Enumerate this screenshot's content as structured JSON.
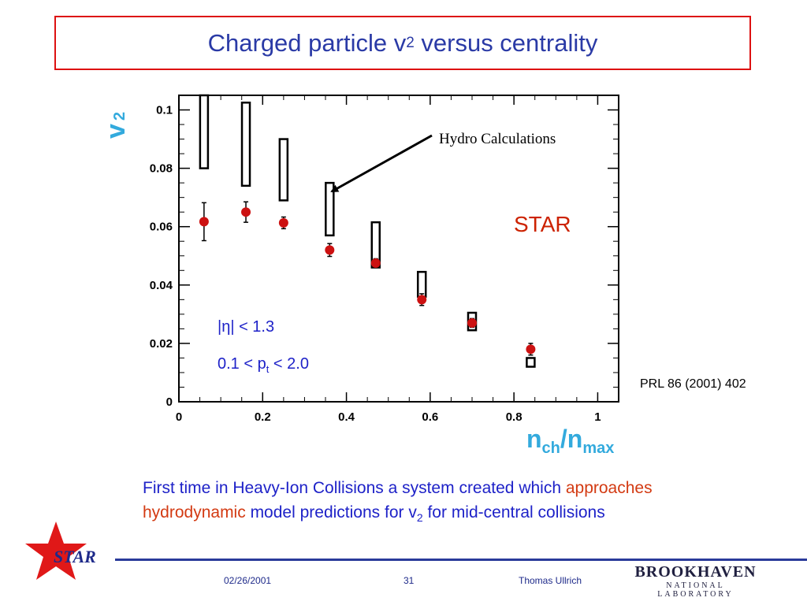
{
  "slide": {
    "title_main": "Charged particle v",
    "title_sub": "2",
    "title_rest": " versus centrality"
  },
  "chart_data": {
    "type": "scatter",
    "xlim": [
      0,
      1.05
    ],
    "ylim": [
      0,
      0.105
    ],
    "x_ticks": [
      "0",
      "0.2",
      "0.4",
      "0.6",
      "0.8",
      "1"
    ],
    "y_ticks": [
      "0",
      "0.02",
      "0.04",
      "0.06",
      "0.08",
      "0.1"
    ],
    "xlabel_main": "n",
    "xlabel_sub1": "ch",
    "xlabel_slash": "/n",
    "xlabel_sub2": "max",
    "ylabel_main": "v",
    "ylabel_sub": "2",
    "series": [
      {
        "kind": "data points",
        "color": "#cc1111",
        "points": [
          {
            "x": 0.06,
            "y": 0.0617,
            "err": 0.0065
          },
          {
            "x": 0.16,
            "y": 0.065,
            "err": 0.0035
          },
          {
            "x": 0.25,
            "y": 0.0613,
            "err": 0.002
          },
          {
            "x": 0.36,
            "y": 0.052,
            "err": 0.0022
          },
          {
            "x": 0.47,
            "y": 0.0475,
            "err": 0.0015
          },
          {
            "x": 0.58,
            "y": 0.035,
            "err": 0.002
          },
          {
            "x": 0.7,
            "y": 0.027,
            "err": 0.0015
          },
          {
            "x": 0.84,
            "y": 0.018,
            "err": 0.002
          }
        ]
      },
      {
        "kind": "hydro boxes",
        "color": "#000000",
        "boxes": [
          {
            "x": 0.06,
            "ylow": 0.08,
            "yhigh": 0.105
          },
          {
            "x": 0.16,
            "ylow": 0.074,
            "yhigh": 0.1025
          },
          {
            "x": 0.25,
            "ylow": 0.069,
            "yhigh": 0.09
          },
          {
            "x": 0.36,
            "ylow": 0.057,
            "yhigh": 0.075
          },
          {
            "x": 0.47,
            "ylow": 0.046,
            "yhigh": 0.0615
          },
          {
            "x": 0.58,
            "ylow": 0.036,
            "yhigh": 0.0445
          },
          {
            "x": 0.7,
            "ylow": 0.0245,
            "yhigh": 0.0305
          },
          {
            "x": 0.84,
            "ylow": 0.012,
            "yhigh": 0.015
          }
        ]
      }
    ],
    "annotations": {
      "hydro_label": "Hydro Calculations",
      "experiment": "STAR",
      "cut_eta": "|η| < 1.3",
      "cut_pt_a": "0.1 < p",
      "cut_pt_sub": "t",
      "cut_pt_b": " < 2.0"
    }
  },
  "reference": "PRL 86 (2001) 402",
  "caption": {
    "part1": "First time in Heavy-Ion Collisions a system created which ",
    "highlight": "approaches hydrodynamic",
    "part2": " model predictions for v",
    "sub": "2",
    "part3": " for mid-central collisions"
  },
  "footer": {
    "logo_text": "STAR",
    "date": "02/26/2001",
    "page": "31",
    "author": "Thomas Ullrich",
    "lab_name": "BROOKHAVEN",
    "lab_sub": "NATIONAL LABORATORY"
  }
}
